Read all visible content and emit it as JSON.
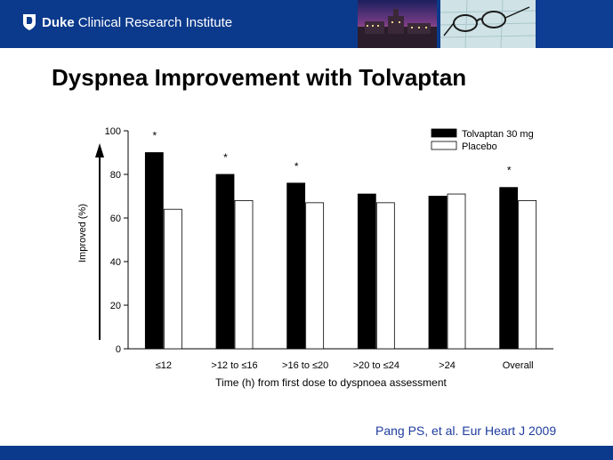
{
  "header": {
    "brand_bold": "Duke",
    "brand_rest": "Clinical Research Institute",
    "colors": {
      "brand_blue": "#0b3a8c"
    }
  },
  "slide": {
    "title": "Dyspnea Improvement with Tolvaptan",
    "citation": "Pang PS, et al. Eur Heart J 2009"
  },
  "chart_data": {
    "type": "bar",
    "categories": [
      "≤12",
      ">12 to ≤16",
      ">16 to ≤20",
      ">20 to ≤24",
      ">24",
      "Overall"
    ],
    "series": [
      {
        "name": "Tolvaptan 30 mg",
        "values": [
          90,
          80,
          76,
          71,
          70,
          74
        ],
        "color": "#000000"
      },
      {
        "name": "Placebo",
        "values": [
          64,
          68,
          67,
          67,
          71,
          68
        ],
        "color": "#ffffff"
      }
    ],
    "significance": [
      "*",
      "*",
      "*",
      "",
      "",
      "*"
    ],
    "xlabel": "Time (h) from first dose to dyspnoea assessment",
    "ylabel": "Improved (%)",
    "ylim": [
      0,
      100
    ],
    "yticks": [
      "0",
      "20",
      "40",
      "60",
      "80",
      "100"
    ],
    "grid": false,
    "legend": "top-right"
  }
}
